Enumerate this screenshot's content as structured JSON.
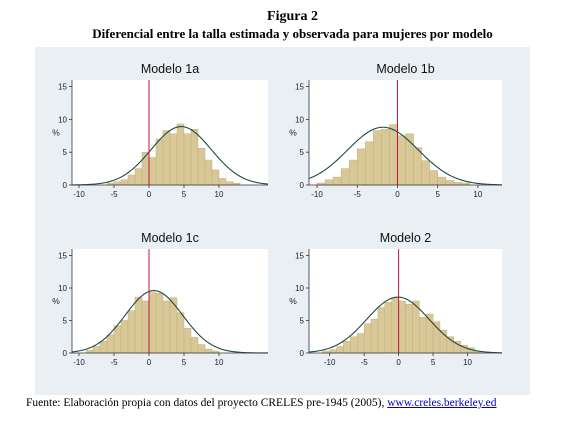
{
  "figure": {
    "title": "Figura 2",
    "subtitle": "Diferencial entre la talla estimada y observada para mujeres por modelo"
  },
  "source": {
    "text": "Fuente: Elaboración propia con datos del proyecto CRELES pre-1945 (2005),",
    "link": "www.creles.berkeley.ed"
  },
  "colors": {
    "panel_background": "#e9eff3",
    "bar_fill": "#d8c898",
    "bar_stroke": "#c3b078",
    "normal_curve": "#1f4b41",
    "zero_line": "#c0143c"
  },
  "chart_data": [
    {
      "type": "bar",
      "title": "Modelo 1a",
      "ylabel": "%",
      "xlim": [
        -11,
        17
      ],
      "ylim": [
        0,
        16
      ],
      "xticks": [
        -10,
        -5,
        0,
        5,
        10
      ],
      "yticks": [
        0,
        5,
        10,
        15
      ],
      "bin_width": 1,
      "bin_centers": [
        -5.5,
        -4.5,
        -3.5,
        -2.5,
        -1.5,
        -0.5,
        0.5,
        1.5,
        2.5,
        3.5,
        4.5,
        5.5,
        6.5,
        7.5,
        8.5,
        9.5,
        10.5,
        11.5,
        12.5
      ],
      "values": [
        0.3,
        0.5,
        0.8,
        1.5,
        2.5,
        5.0,
        4.2,
        7.0,
        8.3,
        7.8,
        9.3,
        7.8,
        8.5,
        5.6,
        3.8,
        2.3,
        1.0,
        0.5,
        0.3
      ],
      "normal_curve": {
        "mean": 4.6,
        "sd": 4.3,
        "peak": 8.9
      },
      "reference_line_x": 0
    },
    {
      "type": "bar",
      "title": "Modelo 1b",
      "ylabel": "%",
      "xlim": [
        -11,
        13
      ],
      "ylim": [
        0,
        16
      ],
      "xticks": [
        -10,
        -5,
        0,
        5,
        10
      ],
      "yticks": [
        0,
        5,
        10,
        15
      ],
      "bin_width": 1,
      "bin_centers": [
        -9.5,
        -8.5,
        -7.5,
        -6.5,
        -5.5,
        -4.5,
        -3.5,
        -2.5,
        -1.5,
        -0.5,
        0.5,
        1.5,
        2.5,
        3.5,
        4.5,
        5.5,
        6.5,
        7.5,
        8.5
      ],
      "values": [
        0.3,
        0.8,
        1.2,
        2.5,
        3.8,
        5.5,
        6.6,
        8.3,
        8.5,
        9.2,
        7.5,
        7.8,
        5.7,
        3.7,
        2.2,
        1.2,
        0.7,
        0.4,
        0.3
      ],
      "normal_curve": {
        "mean": -1.8,
        "sd": 4.4,
        "peak": 8.8
      },
      "reference_line_x": 0
    },
    {
      "type": "bar",
      "title": "Modelo 1c",
      "ylabel": "%",
      "xlim": [
        -11,
        17
      ],
      "ylim": [
        0,
        16
      ],
      "xticks": [
        -10,
        -5,
        0,
        5,
        10
      ],
      "yticks": [
        0,
        5,
        10,
        15
      ],
      "bin_width": 1,
      "bin_centers": [
        -8.5,
        -7.5,
        -6.5,
        -5.5,
        -4.5,
        -3.5,
        -2.5,
        -1.5,
        -0.5,
        0.5,
        1.5,
        2.5,
        3.5,
        4.5,
        5.5,
        6.5,
        7.5,
        8.5,
        9.5
      ],
      "values": [
        0.4,
        1.0,
        1.8,
        2.8,
        4.2,
        5.0,
        6.5,
        8.6,
        8.0,
        9.3,
        9.2,
        8.0,
        8.5,
        6.2,
        3.8,
        2.4,
        1.3,
        0.6,
        0.3
      ],
      "normal_curve": {
        "mean": 0.7,
        "sd": 4.1,
        "peak": 9.6
      },
      "reference_line_x": 0
    },
    {
      "type": "bar",
      "title": "Modelo 2",
      "ylabel": "%",
      "xlim": [
        -13,
        15
      ],
      "ylim": [
        0,
        16
      ],
      "xticks": [
        -10,
        -5,
        0,
        5,
        10
      ],
      "yticks": [
        0,
        5,
        10,
        15
      ],
      "bin_width": 1,
      "bin_centers": [
        -10.5,
        -9.5,
        -8.5,
        -7.5,
        -6.5,
        -5.5,
        -4.5,
        -3.5,
        -2.5,
        -1.5,
        -0.5,
        0.5,
        1.5,
        2.5,
        3.5,
        4.5,
        5.5,
        6.5,
        7.5,
        8.5,
        9.5,
        10.5,
        11.5
      ],
      "values": [
        0.3,
        0.5,
        1.0,
        1.8,
        2.5,
        3.0,
        4.5,
        5.2,
        7.0,
        7.8,
        8.5,
        8.0,
        7.5,
        8.0,
        5.5,
        6.0,
        4.8,
        3.5,
        2.5,
        1.8,
        1.2,
        0.8,
        0.3
      ],
      "normal_curve": {
        "mean": -0.1,
        "sd": 4.5,
        "peak": 8.6
      },
      "reference_line_x": 0
    }
  ]
}
